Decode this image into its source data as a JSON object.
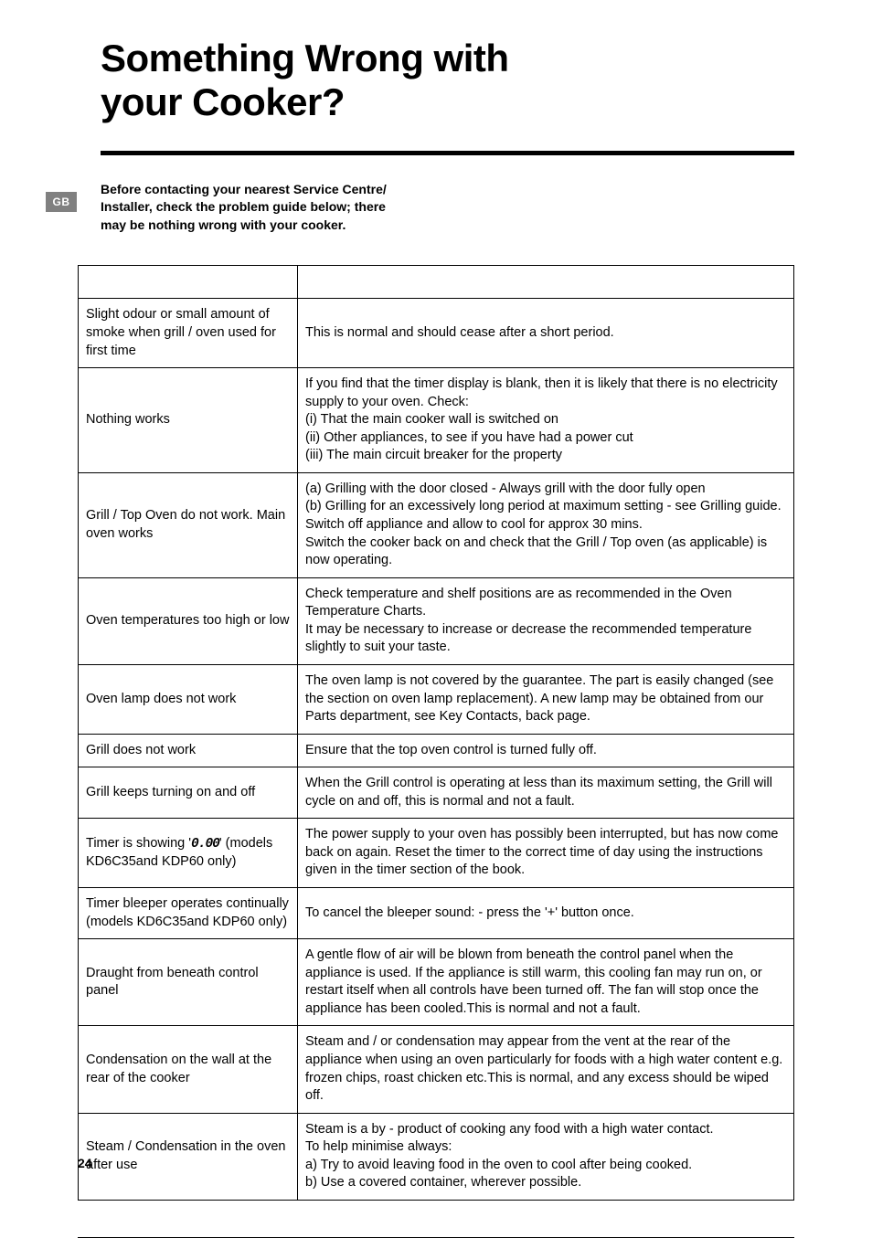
{
  "page": {
    "title_line1": "Something Wrong with",
    "title_line2": "your Cooker?",
    "badge": "GB",
    "intro": "Before contacting your nearest Service Centre/ Installer, check the problem guide below; there may be nothing wrong with your cooker.",
    "page_number": "24"
  },
  "table": {
    "header_problem": "",
    "header_solution": "",
    "rows": [
      {
        "problem": "Slight odour or small amount of smoke when grill / oven used for first time",
        "solution": "This is normal and should cease after a short period."
      },
      {
        "problem": "Nothing works",
        "solution": "If you find that the timer display is blank, then it is likely that there is no electricity supply to your oven. Check:\n(i) That the main cooker wall is switched on\n(ii) Other appliances, to see if you have had a power cut\n(iii) The main circuit breaker for the property"
      },
      {
        "problem": "Grill / Top Oven do not work. Main oven works",
        "solution": "(a) Grilling with the door closed - Always grill with the door fully open\n(b) Grilling for an excessively long period at maximum setting - see Grilling guide. Switch off appliance and allow to cool for approx 30 mins.\nSwitch the cooker back on and check that the Grill / Top oven (as applicable) is now operating."
      },
      {
        "problem": "Oven temperatures too high or low",
        "solution": "Check temperature and shelf positions are as recommended in the Oven Temperature Charts.\nIt may be necessary to increase or decrease the recommended temperature slightly to suit your taste."
      },
      {
        "problem": "Oven lamp does not work",
        "solution": "The oven lamp is not covered by the guarantee. The part is easily changed (see the section on oven lamp replacement). A new lamp may be obtained from our Parts department, see Key Contacts, back page."
      },
      {
        "problem": "Grill does not work",
        "solution": "Ensure that the top oven control is turned fully off."
      },
      {
        "problem": "Grill keeps turning on and off",
        "solution": "When the Grill control is operating at less than its maximum setting, the Grill will cycle on and off, this is normal and not a fault."
      },
      {
        "problem_prefix": "Timer is showing '",
        "problem_digital": "0.00",
        "problem_suffix": "' (models KD6C35and KDP60 only)",
        "solution": "The power supply to your oven has possibly been interrupted, but has now come back on again. Reset the timer to the correct time of day using the instructions given in the timer section of the book."
      },
      {
        "problem": "Timer bleeper operates continually (models KD6C35and KDP60 only)",
        "solution": "To cancel the bleeper sound: - press the '+' button once."
      },
      {
        "problem": "Draught from beneath control panel",
        "solution": "A gentle flow of air will be blown from beneath the control panel when the appliance is used. If the appliance is still warm, this cooling fan may run on, or restart itself when all controls have been turned off. The fan will stop once the appliance has been cooled.This is normal and not a fault."
      },
      {
        "problem": "Condensation on the wall at the rear of the cooker",
        "solution": "Steam and / or condensation may appear from the vent at the rear of the appliance when using an oven particularly for foods with a high water content e.g. frozen chips, roast chicken etc.This is normal, and any excess should be wiped off."
      },
      {
        "problem": "Steam / Condensation in the oven after use",
        "solution": "Steam is a by - product of cooking any food with a high water contact.\nTo help minimise always:\na) Try to avoid leaving food in the oven to cool after being cooked.\nb) Use a covered container, wherever possible."
      }
    ]
  },
  "styling": {
    "background_color": "#ffffff",
    "text_color": "#000000",
    "badge_bg": "#808080",
    "badge_fg": "#ffffff",
    "rule_color": "#000000",
    "border_color": "#000000",
    "title_fontsize": 42,
    "body_fontsize": 14.5,
    "col_problem_width": 240
  }
}
